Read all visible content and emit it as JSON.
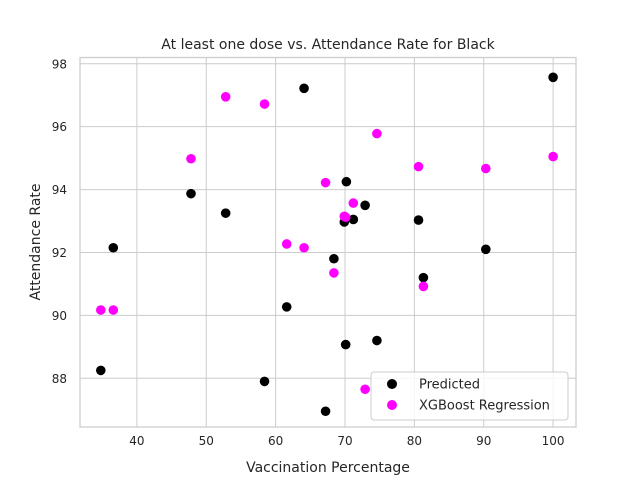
{
  "chart_data": {
    "type": "scatter",
    "title": "At least one dose vs. Attendance Rate for Black",
    "xlabel": "Vaccination Percentage",
    "ylabel": "Attendance Rate",
    "xlim": [
      31.8,
      103.3
    ],
    "ylim": [
      86.45,
      98.2
    ],
    "xticks": [
      40,
      50,
      60,
      70,
      80,
      90,
      100
    ],
    "yticks": [
      88,
      90,
      92,
      94,
      96,
      98
    ],
    "grid": true,
    "legend_position": "bottom-right",
    "series": [
      {
        "name": "Predicted",
        "color": "#000000",
        "points": [
          [
            34.8,
            88.25
          ],
          [
            36.6,
            92.15
          ],
          [
            47.8,
            93.87
          ],
          [
            52.8,
            93.25
          ],
          [
            58.4,
            87.9
          ],
          [
            61.6,
            90.27
          ],
          [
            64.1,
            97.22
          ],
          [
            67.2,
            86.95
          ],
          [
            68.4,
            91.8
          ],
          [
            69.9,
            92.97
          ],
          [
            70.1,
            89.07
          ],
          [
            70.2,
            94.25
          ],
          [
            71.2,
            93.05
          ],
          [
            72.9,
            93.5
          ],
          [
            74.6,
            89.2
          ],
          [
            80.6,
            93.03
          ],
          [
            81.3,
            91.2
          ],
          [
            90.3,
            92.1
          ],
          [
            100.0,
            97.57
          ]
        ]
      },
      {
        "name": "XGBoost Regression",
        "color": "#ff00ff",
        "points": [
          [
            34.8,
            90.17
          ],
          [
            36.6,
            90.17
          ],
          [
            47.8,
            94.98
          ],
          [
            52.8,
            96.95
          ],
          [
            58.4,
            96.72
          ],
          [
            61.6,
            92.27
          ],
          [
            64.1,
            92.15
          ],
          [
            67.2,
            94.22
          ],
          [
            68.4,
            91.35
          ],
          [
            69.9,
            93.15
          ],
          [
            70.1,
            93.12
          ],
          [
            71.2,
            93.57
          ],
          [
            72.9,
            87.65
          ],
          [
            74.6,
            95.78
          ],
          [
            80.6,
            94.73
          ],
          [
            81.3,
            90.92
          ],
          [
            90.3,
            94.67
          ],
          [
            100.0,
            95.05
          ]
        ]
      }
    ]
  }
}
